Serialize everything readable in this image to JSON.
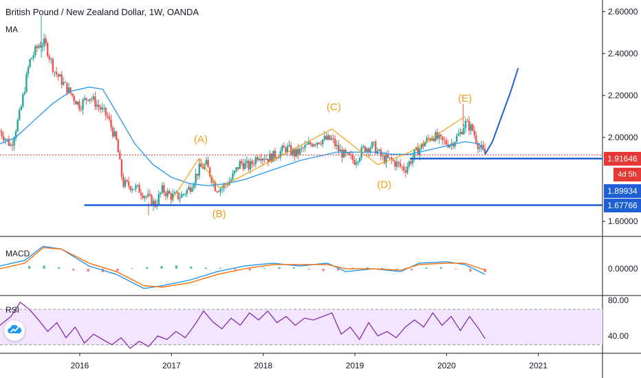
{
  "header": {
    "title": "British Pound / New Zealand Dollar, 1W, OANDA",
    "ma_label": "MA",
    "macd_label": "MACD",
    "rsi_label": "RSI"
  },
  "tags": {
    "current_price": "1.91646",
    "countdown": "4d 5h",
    "level_1": "1.89934",
    "level_2": "1.67766"
  },
  "chart_data": [
    {
      "type": "line",
      "pane": "price",
      "y_ticks": [
        "2.60000",
        "2.40000",
        "2.20000",
        "2.00000",
        "1.60000"
      ],
      "y_tick_values": [
        2.6,
        2.4,
        2.2,
        2.0,
        1.6
      ],
      "ylim": [
        1.535,
        2.655
      ],
      "x_ticks": [
        "2016",
        "2017",
        "2018",
        "2019",
        "2020",
        "2021"
      ],
      "x_tick_values": [
        2016,
        2017,
        2018,
        2019,
        2020,
        2021
      ],
      "xlim": [
        2015.13,
        2021.7
      ],
      "candles_polyline": {
        "x": [
          2015.13,
          2015.25,
          2015.35,
          2015.45,
          2015.55,
          2015.62,
          2015.72,
          2015.8,
          2015.9,
          2016.0,
          2016.1,
          2016.2,
          2016.3,
          2016.4,
          2016.47,
          2016.55,
          2016.65,
          2016.75,
          2016.82,
          2016.9,
          2017.0,
          2017.1,
          2017.2,
          2017.3,
          2017.38,
          2017.48,
          2017.55,
          2017.65,
          2017.75,
          2017.85,
          2017.95,
          2018.05,
          2018.15,
          2018.25,
          2018.35,
          2018.45,
          2018.55,
          2018.65,
          2018.75,
          2018.82,
          2018.9,
          2019.0,
          2019.1,
          2019.2,
          2019.3,
          2019.4,
          2019.5,
          2019.55,
          2019.65,
          2019.75,
          2019.85,
          2019.95,
          2020.05,
          2020.15,
          2020.2,
          2020.28,
          2020.35,
          2020.42
        ],
        "y": [
          2.03,
          1.96,
          2.12,
          2.36,
          2.44,
          2.45,
          2.32,
          2.27,
          2.21,
          2.15,
          2.2,
          2.15,
          2.1,
          1.98,
          1.78,
          1.77,
          1.75,
          1.71,
          1.68,
          1.75,
          1.72,
          1.72,
          1.76,
          1.85,
          1.87,
          1.76,
          1.76,
          1.8,
          1.88,
          1.86,
          1.92,
          1.9,
          1.92,
          1.95,
          1.92,
          1.95,
          1.98,
          1.99,
          1.99,
          1.94,
          1.91,
          1.89,
          1.95,
          1.96,
          1.9,
          1.89,
          1.86,
          1.85,
          1.92,
          1.97,
          2.01,
          1.98,
          1.97,
          2.02,
          2.07,
          2.04,
          1.96,
          1.92
        ]
      },
      "ma_series": {
        "name": "MA",
        "x": [
          2015.13,
          2015.3,
          2015.5,
          2015.7,
          2015.9,
          2016.1,
          2016.25,
          2016.4,
          2016.6,
          2016.8,
          2017.0,
          2017.2,
          2017.4,
          2017.6,
          2017.8,
          2018.0,
          2018.2,
          2018.4,
          2018.6,
          2018.8,
          2019.0,
          2019.2,
          2019.4,
          2019.6,
          2019.8,
          2020.0,
          2020.2,
          2020.35,
          2020.42
        ],
        "y": [
          1.97,
          2.0,
          2.08,
          2.16,
          2.22,
          2.24,
          2.23,
          2.12,
          1.97,
          1.87,
          1.81,
          1.78,
          1.77,
          1.78,
          1.8,
          1.83,
          1.86,
          1.89,
          1.91,
          1.93,
          1.93,
          1.93,
          1.92,
          1.92,
          1.94,
          1.96,
          1.98,
          1.97,
          1.93
        ]
      },
      "wave_labels": [
        {
          "label": "(A)",
          "x": 2017.32,
          "y": 1.975
        },
        {
          "label": "(B)",
          "x": 2017.52,
          "y": 1.62
        },
        {
          "label": "(C)",
          "x": 2018.77,
          "y": 2.13
        },
        {
          "label": "(D)",
          "x": 2019.32,
          "y": 1.76
        },
        {
          "label": "(E)",
          "x": 2020.2,
          "y": 2.17
        }
      ],
      "wave_path": {
        "x": [
          2017.0,
          2017.3,
          2017.52,
          2018.75,
          2019.25,
          2019.6,
          2020.2
        ],
        "y": [
          1.7,
          1.9,
          1.76,
          2.04,
          1.87,
          1.93,
          2.1
        ]
      },
      "projection": {
        "x": [
          2020.42,
          2020.5,
          2020.6,
          2020.7,
          2020.78
        ],
        "y": [
          1.92,
          1.98,
          2.1,
          2.22,
          2.33
        ]
      },
      "horizontal_levels": [
        {
          "value": 1.89934,
          "x_start": 2019.6,
          "style": "solid",
          "color": "#1e60d4"
        },
        {
          "value": 1.67766,
          "x_start": 2016.05,
          "style": "solid",
          "color": "#1e60d4"
        },
        {
          "value": 1.91646,
          "x_start": 2015.13,
          "style": "dotted",
          "color": "#e23b3b"
        }
      ]
    },
    {
      "type": "line",
      "pane": "macd",
      "y_ticks": [
        "0.00000"
      ],
      "y_tick_values": [
        0
      ],
      "ylim": [
        -0.09,
        0.11
      ],
      "series": [
        {
          "name": "MACD",
          "x": [
            2015.13,
            2015.4,
            2015.6,
            2015.8,
            2016.1,
            2016.4,
            2016.7,
            2016.9,
            2017.2,
            2017.5,
            2017.8,
            2018.1,
            2018.4,
            2018.7,
            2018.9,
            2019.2,
            2019.5,
            2019.7,
            2020.0,
            2020.2,
            2020.42
          ],
          "y": [
            0.01,
            0.03,
            0.08,
            0.07,
            0.01,
            -0.02,
            -0.07,
            -0.06,
            -0.04,
            -0.01,
            0.01,
            0.02,
            0.01,
            0.02,
            -0.01,
            0.0,
            -0.01,
            0.02,
            0.025,
            0.015,
            -0.02
          ]
        },
        {
          "name": "Signal",
          "x": [
            2015.13,
            2015.4,
            2015.6,
            2015.8,
            2016.1,
            2016.4,
            2016.7,
            2016.9,
            2017.2,
            2017.5,
            2017.8,
            2018.1,
            2018.4,
            2018.7,
            2018.9,
            2019.2,
            2019.5,
            2019.7,
            2020.0,
            2020.2,
            2020.42
          ],
          "y": [
            0.0,
            0.02,
            0.075,
            0.07,
            0.02,
            -0.01,
            -0.06,
            -0.065,
            -0.05,
            -0.02,
            0.0,
            0.015,
            0.015,
            0.015,
            0.0,
            0.0,
            -0.005,
            0.015,
            0.02,
            0.02,
            -0.005
          ]
        }
      ],
      "histogram": [
        0.01,
        0.012,
        0.005,
        -0.006,
        -0.01,
        -0.012,
        -0.008,
        0.002,
        0.006,
        0.01,
        0.012,
        0.008,
        0.004,
        0.003,
        -0.004,
        -0.006,
        0.002,
        0.006,
        0.005,
        -0.003,
        -0.008,
        -0.006,
        0.004,
        0.005,
        0.003,
        -0.002,
        -0.005,
        0.004,
        0.006,
        -0.002,
        -0.01,
        -0.012
      ]
    },
    {
      "type": "line",
      "pane": "rsi",
      "y_ticks": [
        "80.00",
        "40.00"
      ],
      "y_tick_values": [
        80,
        40
      ],
      "ylim": [
        22,
        84
      ],
      "band": [
        30,
        70
      ],
      "series": [
        {
          "name": "RSI",
          "x": [
            2015.13,
            2015.25,
            2015.35,
            2015.45,
            2015.55,
            2015.65,
            2015.75,
            2015.85,
            2015.95,
            2016.05,
            2016.15,
            2016.25,
            2016.35,
            2016.45,
            2016.55,
            2016.65,
            2016.75,
            2016.85,
            2016.95,
            2017.05,
            2017.15,
            2017.25,
            2017.35,
            2017.45,
            2017.55,
            2017.65,
            2017.75,
            2017.85,
            2017.95,
            2018.05,
            2018.15,
            2018.25,
            2018.35,
            2018.45,
            2018.55,
            2018.65,
            2018.75,
            2018.85,
            2018.95,
            2019.05,
            2019.15,
            2019.25,
            2019.35,
            2019.45,
            2019.55,
            2019.65,
            2019.75,
            2019.85,
            2019.95,
            2020.05,
            2020.15,
            2020.25,
            2020.35,
            2020.42
          ],
          "y": [
            52,
            62,
            78,
            70,
            58,
            45,
            55,
            38,
            50,
            32,
            42,
            36,
            30,
            38,
            26,
            34,
            28,
            40,
            36,
            45,
            38,
            52,
            68,
            56,
            48,
            60,
            52,
            66,
            58,
            68,
            55,
            62,
            52,
            60,
            58,
            62,
            66,
            42,
            50,
            36,
            55,
            40,
            45,
            38,
            50,
            58,
            50,
            66,
            52,
            62,
            46,
            62,
            48,
            37
          ]
        }
      ]
    }
  ],
  "colors": {
    "up": "#26a69a",
    "down": "#ef5350",
    "ma": "#2196f3",
    "wave": "#f39c12",
    "level": "#1e60d4",
    "macd": "#2196f3",
    "signal": "#ff6d00",
    "rsi": "#7b1fa2",
    "rsi_band": "#f3e5ff",
    "price_tag": "#e53935",
    "countdown_tag": "#e53935",
    "level_tag": "#1e60d4"
  }
}
